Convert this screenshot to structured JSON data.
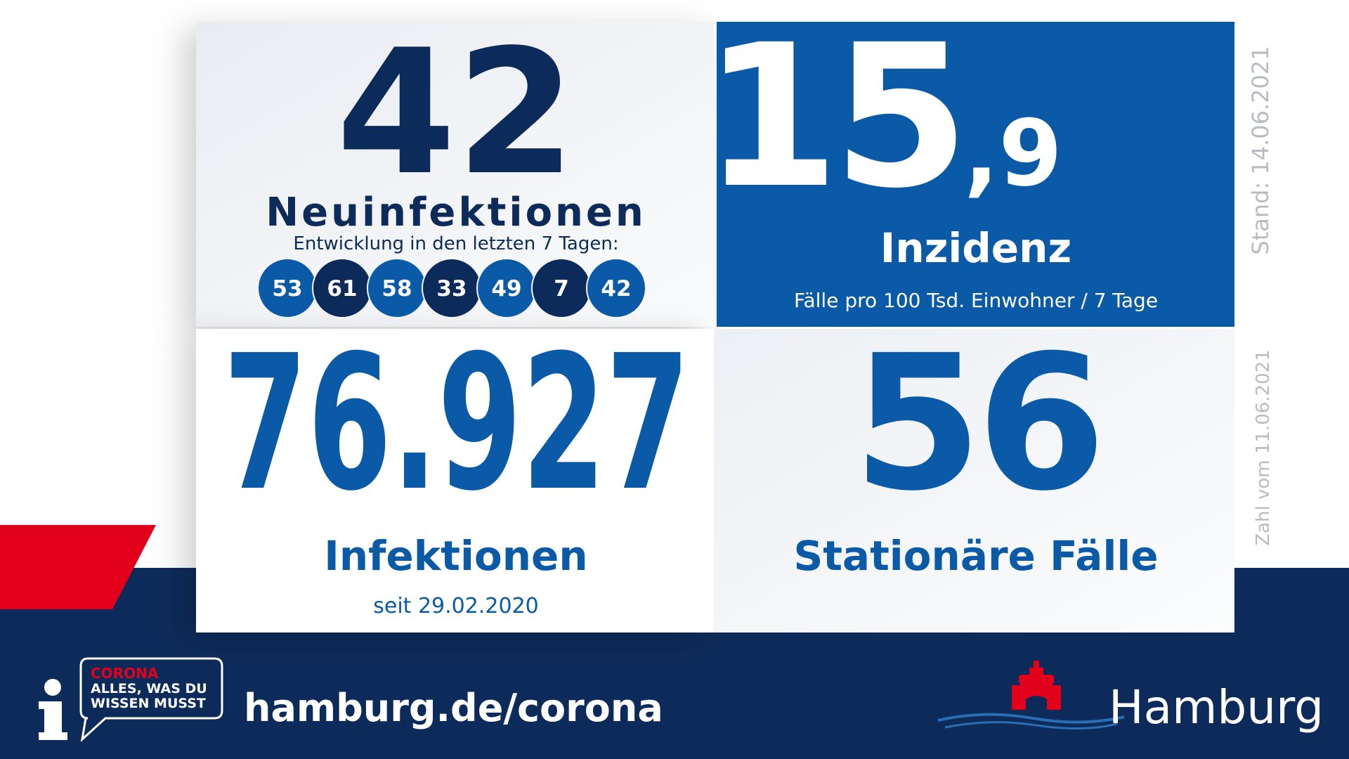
{
  "new_infections": {
    "value": "42",
    "label": "Neuinfektionen",
    "subtitle": "Entwicklung in den letzten 7 Tagen:",
    "last_7_days": [
      "53",
      "61",
      "58",
      "33",
      "49",
      "7",
      "42"
    ]
  },
  "incidence": {
    "value_int": "15",
    "value_dec": ",9",
    "label": "Inzidenz",
    "note": "Fälle pro 100 Tsd. Einwohner / 7 Tage"
  },
  "total": {
    "value": "76.927",
    "label": "Infektionen",
    "note": "seit 29.02.2020"
  },
  "hospital": {
    "value": "56",
    "label": "Stationäre Fälle"
  },
  "stand": "Stand: 14.06.2021",
  "zahl_vom": "Zahl vom 11.06.2021",
  "footer": {
    "badge": [
      "CORONA",
      "ALLES, WAS DU",
      "WISSEN MUSST"
    ],
    "url": "hamburg.de/corona",
    "brand": "Hamburg"
  }
}
